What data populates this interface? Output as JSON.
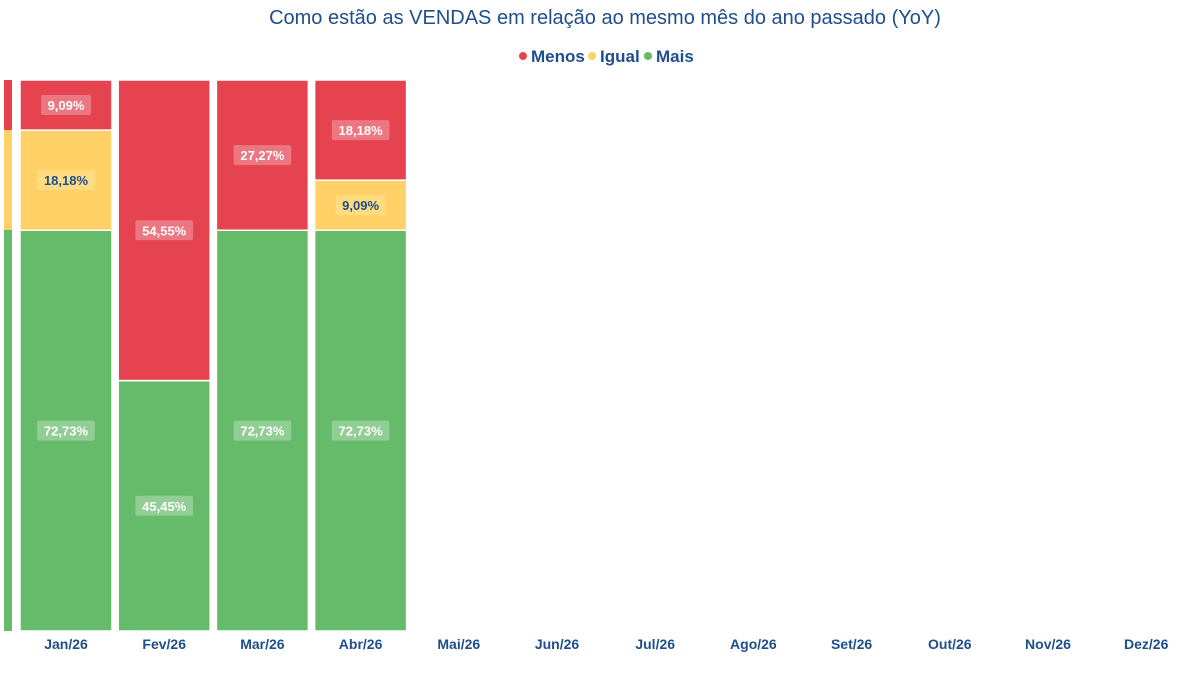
{
  "chart_data": {
    "type": "bar",
    "stacked": true,
    "title": "Como estão as VENDAS em relação ao mesmo mês do ano passado (YoY)",
    "legend_position": "top-center",
    "grid": false,
    "ylim": [
      0,
      100
    ],
    "categories": [
      "Jan/26",
      "Fev/26",
      "Mar/26",
      "Abr/26",
      "Mai/26",
      "Jun/26",
      "Jul/26",
      "Ago/26",
      "Set/26",
      "Out/26",
      "Nov/26",
      "Dez/26"
    ],
    "series": [
      {
        "name": "Mais",
        "color": "#66bb6a",
        "values": [
          72.73,
          45.45,
          72.73,
          72.73,
          null,
          null,
          null,
          null,
          null,
          null,
          null,
          null
        ],
        "labels": [
          "72,73%",
          "45,45%",
          "72,73%",
          "72,73%",
          "",
          "",
          "",
          "",
          "",
          "",
          "",
          ""
        ]
      },
      {
        "name": "Igual",
        "color": "#ffd166",
        "values": [
          18.18,
          0,
          0,
          9.09,
          null,
          null,
          null,
          null,
          null,
          null,
          null,
          null
        ],
        "labels": [
          "18,18%",
          "",
          "",
          "9,09%",
          "",
          "",
          "",
          "",
          "",
          "",
          "",
          ""
        ]
      },
      {
        "name": "Menos",
        "color": "#e5434f",
        "values": [
          9.09,
          54.55,
          27.27,
          18.18,
          null,
          null,
          null,
          null,
          null,
          null,
          null,
          null
        ],
        "labels": [
          "9,09%",
          "54,55%",
          "27,27%",
          "18,18%",
          "",
          "",
          "",
          "",
          "",
          "",
          "",
          ""
        ]
      }
    ],
    "legend_order": [
      "Menos",
      "Igual",
      "Mais"
    ],
    "colors": {
      "title": "#1f4e8c",
      "label_box_dark": "#1f4e8c"
    }
  }
}
